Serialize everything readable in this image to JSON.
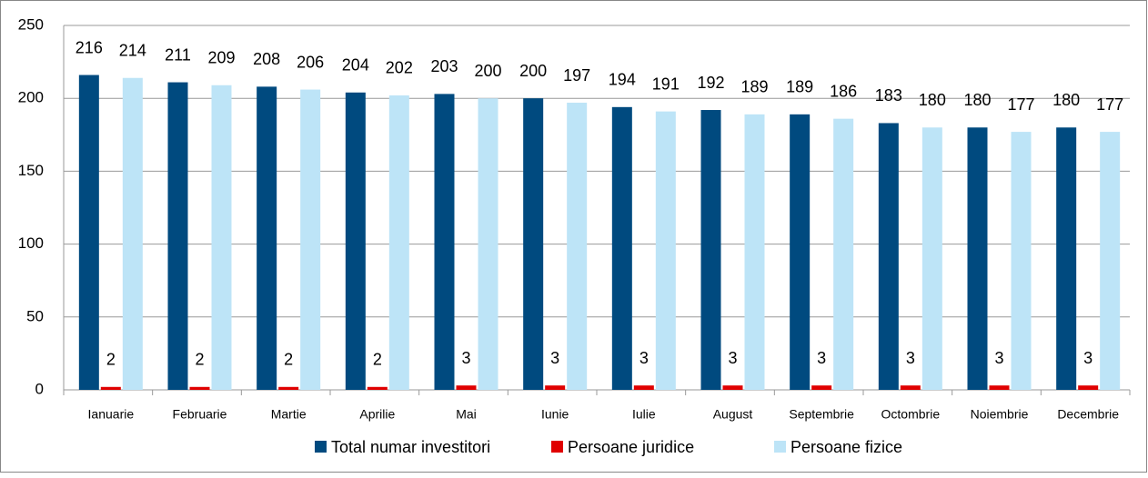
{
  "chart_data": {
    "type": "bar",
    "categories": [
      "Ianuarie",
      "Februarie",
      "Martie",
      "Aprilie",
      "Mai",
      "Iunie",
      "Iulie",
      "August",
      "Septembrie",
      "Octombrie",
      "Noiembrie",
      "Decembrie"
    ],
    "series": [
      {
        "name": "Total numar investitori",
        "color": "#004a7f",
        "values": [
          216,
          211,
          208,
          204,
          203,
          200,
          194,
          192,
          189,
          183,
          180,
          180
        ]
      },
      {
        "name": "Persoane juridice",
        "color": "#e00000",
        "values": [
          2,
          2,
          2,
          2,
          3,
          3,
          3,
          3,
          3,
          3,
          3,
          3
        ]
      },
      {
        "name": "Persoane fizice",
        "color": "#bde4f7",
        "values": [
          214,
          209,
          206,
          202,
          200,
          197,
          191,
          189,
          186,
          180,
          177,
          177
        ]
      }
    ],
    "ylim": [
      0,
      250
    ],
    "yticks": [
      0,
      50,
      100,
      150,
      200,
      250
    ],
    "grid": true,
    "legend": "bottom"
  }
}
